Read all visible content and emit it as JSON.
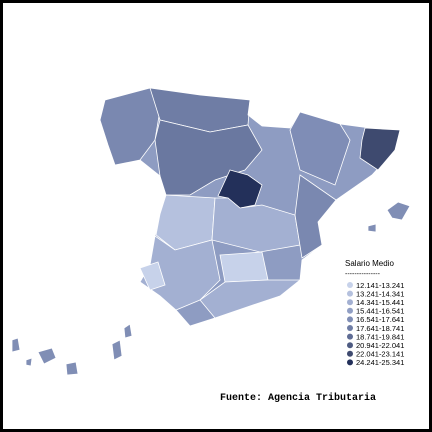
{
  "legend": {
    "title": "Salario Medio",
    "rule": "---------------",
    "items": [
      {
        "label": "12.141-13.241",
        "color": "#c7d2ea"
      },
      {
        "label": "13.241-14.341",
        "color": "#b5c1de"
      },
      {
        "label": "14.341-15.441",
        "color": "#a3b0d2"
      },
      {
        "label": "15.441-16.541",
        "color": "#919fc4"
      },
      {
        "label": "16.541-17.641",
        "color": "#808eb5"
      },
      {
        "label": "17.641-18.741",
        "color": "#6f7da5"
      },
      {
        "label": "18.741-19.841",
        "color": "#5f6c94"
      },
      {
        "label": "20.941-22.041",
        "color": "#4e5b82"
      },
      {
        "label": "22.041-23.141",
        "color": "#3e4a6f"
      },
      {
        "label": "24.241-25.341",
        "color": "#23305a"
      }
    ]
  },
  "source": "Fuente: Agencia Tributaria"
}
